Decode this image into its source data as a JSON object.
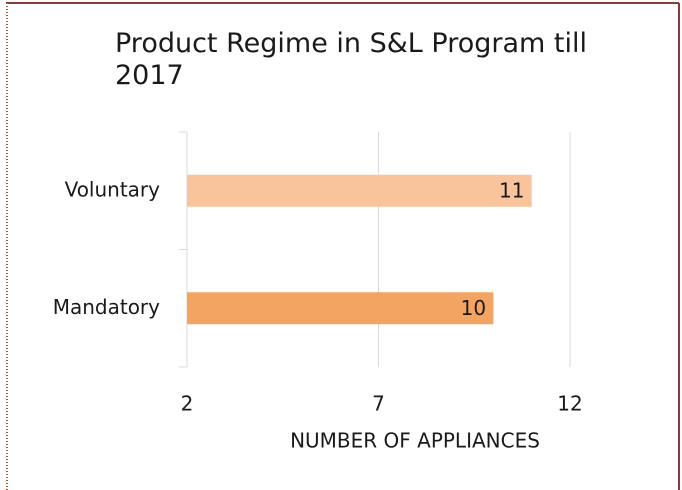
{
  "chart_data": {
    "type": "bar",
    "orientation": "horizontal",
    "title": "Product Regime in S&L Program till 2017",
    "categories": [
      "Voluntary",
      "Mandatory"
    ],
    "series": [
      {
        "name": "Number of appliances",
        "values": [
          11,
          10
        ]
      }
    ],
    "colors": [
      "#f9c49c",
      "#f4a462"
    ],
    "xlim": [
      2,
      12
    ],
    "xticks": [
      2,
      7,
      12
    ],
    "xlabel": "NUMBER OF APPLIANCES",
    "grid": true
  }
}
